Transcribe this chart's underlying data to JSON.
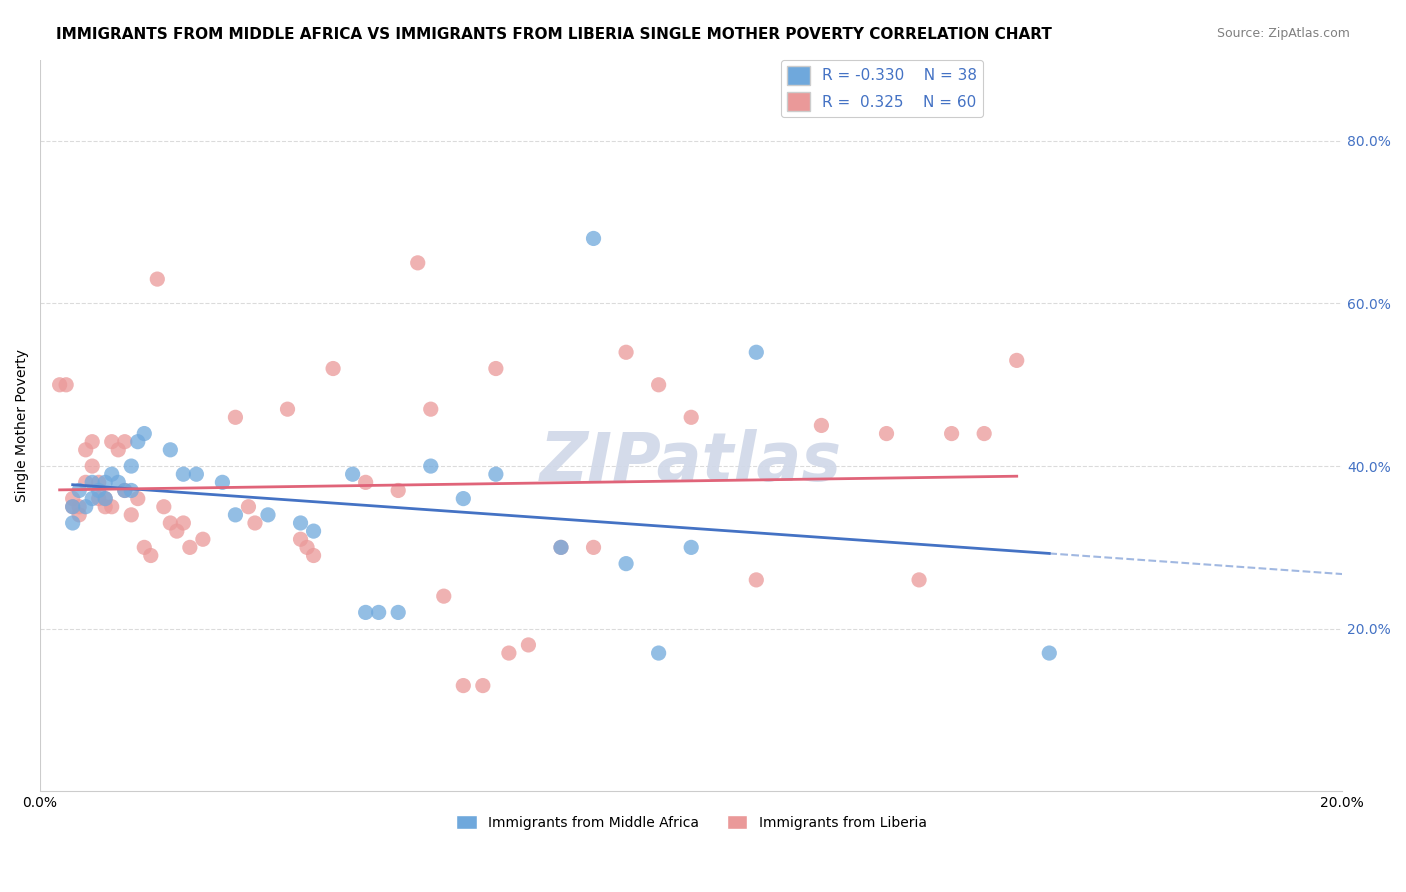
{
  "title": "IMMIGRANTS FROM MIDDLE AFRICA VS IMMIGRANTS FROM LIBERIA SINGLE MOTHER POVERTY CORRELATION CHART",
  "source": "Source: ZipAtlas.com",
  "ylabel": "Single Mother Poverty",
  "ylabel_right_ticks": [
    "80.0%",
    "60.0%",
    "40.0%",
    "20.0%"
  ],
  "ylabel_right_positions": [
    0.8,
    0.6,
    0.4,
    0.2
  ],
  "xlim": [
    0.0,
    0.2
  ],
  "ylim": [
    0.0,
    0.9
  ],
  "blue_color": "#6fa8dc",
  "pink_color": "#ea9999",
  "trendline_blue_color": "#4472c4",
  "trendline_pink_color": "#e06479",
  "blue_scatter": [
    [
      0.005,
      0.35
    ],
    [
      0.005,
      0.33
    ],
    [
      0.006,
      0.37
    ],
    [
      0.007,
      0.35
    ],
    [
      0.008,
      0.38
    ],
    [
      0.008,
      0.36
    ],
    [
      0.009,
      0.37
    ],
    [
      0.01,
      0.36
    ],
    [
      0.01,
      0.38
    ],
    [
      0.011,
      0.39
    ],
    [
      0.012,
      0.38
    ],
    [
      0.013,
      0.37
    ],
    [
      0.014,
      0.4
    ],
    [
      0.014,
      0.37
    ],
    [
      0.015,
      0.43
    ],
    [
      0.016,
      0.44
    ],
    [
      0.02,
      0.42
    ],
    [
      0.022,
      0.39
    ],
    [
      0.024,
      0.39
    ],
    [
      0.028,
      0.38
    ],
    [
      0.03,
      0.34
    ],
    [
      0.035,
      0.34
    ],
    [
      0.04,
      0.33
    ],
    [
      0.042,
      0.32
    ],
    [
      0.048,
      0.39
    ],
    [
      0.05,
      0.22
    ],
    [
      0.052,
      0.22
    ],
    [
      0.055,
      0.22
    ],
    [
      0.06,
      0.4
    ],
    [
      0.065,
      0.36
    ],
    [
      0.07,
      0.39
    ],
    [
      0.08,
      0.3
    ],
    [
      0.085,
      0.68
    ],
    [
      0.09,
      0.28
    ],
    [
      0.095,
      0.17
    ],
    [
      0.1,
      0.3
    ],
    [
      0.11,
      0.54
    ],
    [
      0.155,
      0.17
    ]
  ],
  "pink_scatter": [
    [
      0.003,
      0.5
    ],
    [
      0.004,
      0.5
    ],
    [
      0.005,
      0.36
    ],
    [
      0.005,
      0.35
    ],
    [
      0.006,
      0.34
    ],
    [
      0.006,
      0.35
    ],
    [
      0.007,
      0.38
    ],
    [
      0.007,
      0.42
    ],
    [
      0.008,
      0.43
    ],
    [
      0.008,
      0.4
    ],
    [
      0.009,
      0.38
    ],
    [
      0.009,
      0.36
    ],
    [
      0.01,
      0.36
    ],
    [
      0.01,
      0.35
    ],
    [
      0.011,
      0.35
    ],
    [
      0.011,
      0.43
    ],
    [
      0.012,
      0.42
    ],
    [
      0.013,
      0.43
    ],
    [
      0.013,
      0.37
    ],
    [
      0.014,
      0.34
    ],
    [
      0.015,
      0.36
    ],
    [
      0.016,
      0.3
    ],
    [
      0.017,
      0.29
    ],
    [
      0.018,
      0.63
    ],
    [
      0.019,
      0.35
    ],
    [
      0.02,
      0.33
    ],
    [
      0.021,
      0.32
    ],
    [
      0.022,
      0.33
    ],
    [
      0.023,
      0.3
    ],
    [
      0.025,
      0.31
    ],
    [
      0.03,
      0.46
    ],
    [
      0.032,
      0.35
    ],
    [
      0.033,
      0.33
    ],
    [
      0.038,
      0.47
    ],
    [
      0.04,
      0.31
    ],
    [
      0.041,
      0.3
    ],
    [
      0.042,
      0.29
    ],
    [
      0.045,
      0.52
    ],
    [
      0.05,
      0.38
    ],
    [
      0.055,
      0.37
    ],
    [
      0.058,
      0.65
    ],
    [
      0.06,
      0.47
    ],
    [
      0.062,
      0.24
    ],
    [
      0.065,
      0.13
    ],
    [
      0.068,
      0.13
    ],
    [
      0.07,
      0.52
    ],
    [
      0.072,
      0.17
    ],
    [
      0.075,
      0.18
    ],
    [
      0.08,
      0.3
    ],
    [
      0.085,
      0.3
    ],
    [
      0.09,
      0.54
    ],
    [
      0.095,
      0.5
    ],
    [
      0.1,
      0.46
    ],
    [
      0.11,
      0.26
    ],
    [
      0.12,
      0.45
    ],
    [
      0.13,
      0.44
    ],
    [
      0.135,
      0.26
    ],
    [
      0.14,
      0.44
    ],
    [
      0.145,
      0.44
    ],
    [
      0.15,
      0.53
    ]
  ],
  "background_color": "#ffffff",
  "grid_color": "#cccccc",
  "title_fontsize": 11,
  "source_fontsize": 9,
  "axis_label_color": "#4472c4",
  "watermark_text": "ZIPatlas",
  "watermark_color": "#d0d8e8",
  "watermark_fontsize": 48
}
